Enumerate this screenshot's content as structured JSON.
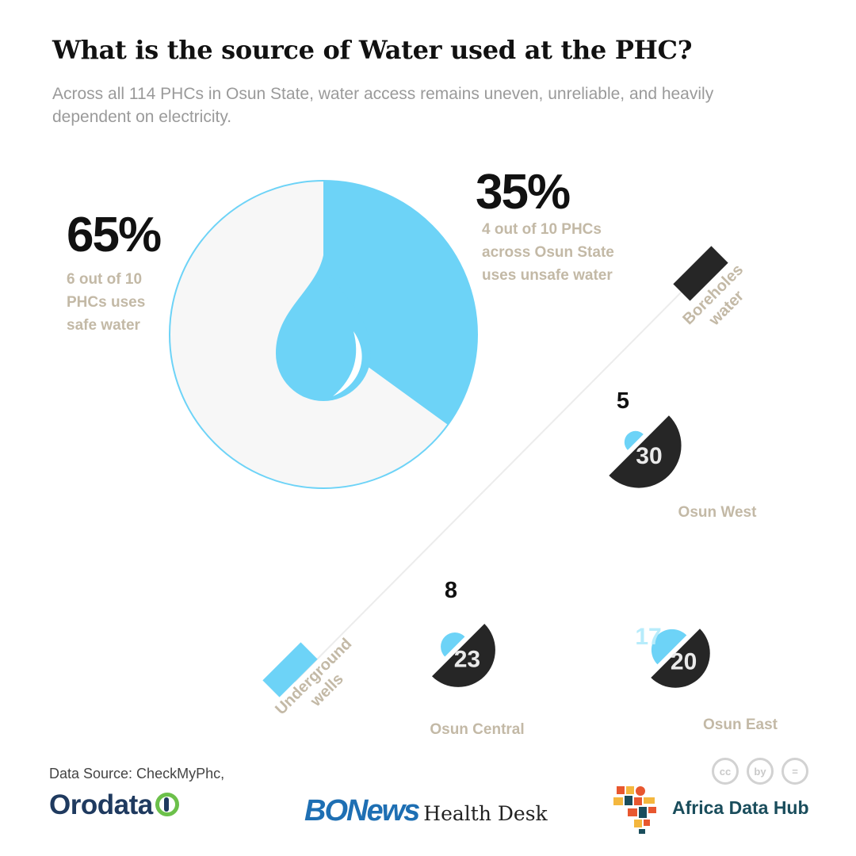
{
  "header": {
    "title": "What is the source of Water used at the PHC?",
    "subtitle": "Across all 114 PHCs in Osun State, water access remains uneven, unreliable, and heavily dependent on electricity."
  },
  "summary": {
    "safe_pct": "65%",
    "safe_note": "6 out of 10\nPHCs uses\nsafe water",
    "unsafe_pct": "35%",
    "unsafe_note": "4 out of 10 PHCs\nacross Osun State\nuses unsafe water"
  },
  "legend": {
    "boreholes": "Boreholes\nwater",
    "wells": "Underground\nwells"
  },
  "colors": {
    "wells": "#6dd3f7",
    "boreholes": "#262626",
    "safe_fill": "#f7f7f7",
    "label": "#c3b9a6"
  },
  "chart_data": [
    {
      "type": "pie",
      "title": "",
      "series": [
        {
          "name": "safe water",
          "value": 65,
          "color": "#f7f7f7"
        },
        {
          "name": "unsafe water",
          "value": 35,
          "color": "#6dd3f7"
        }
      ]
    },
    {
      "type": "pie",
      "title": "",
      "categories": [
        "Osun West",
        "Osun Central",
        "Osun East"
      ],
      "series": [
        {
          "name": "Underground wells",
          "values": [
            5,
            8,
            17
          ],
          "color": "#6dd3f7"
        },
        {
          "name": "Boreholes water",
          "values": [
            30,
            23,
            20
          ],
          "color": "#262626"
        }
      ]
    }
  ],
  "footer": {
    "source": "Data Source: CheckMyPhc,",
    "orodata": "Orodata",
    "bonews": "BONews",
    "health_desk": "Health Desk",
    "africa_data_hub": "Africa Data Hub",
    "cc_icons": [
      "cc",
      "by",
      "="
    ]
  }
}
